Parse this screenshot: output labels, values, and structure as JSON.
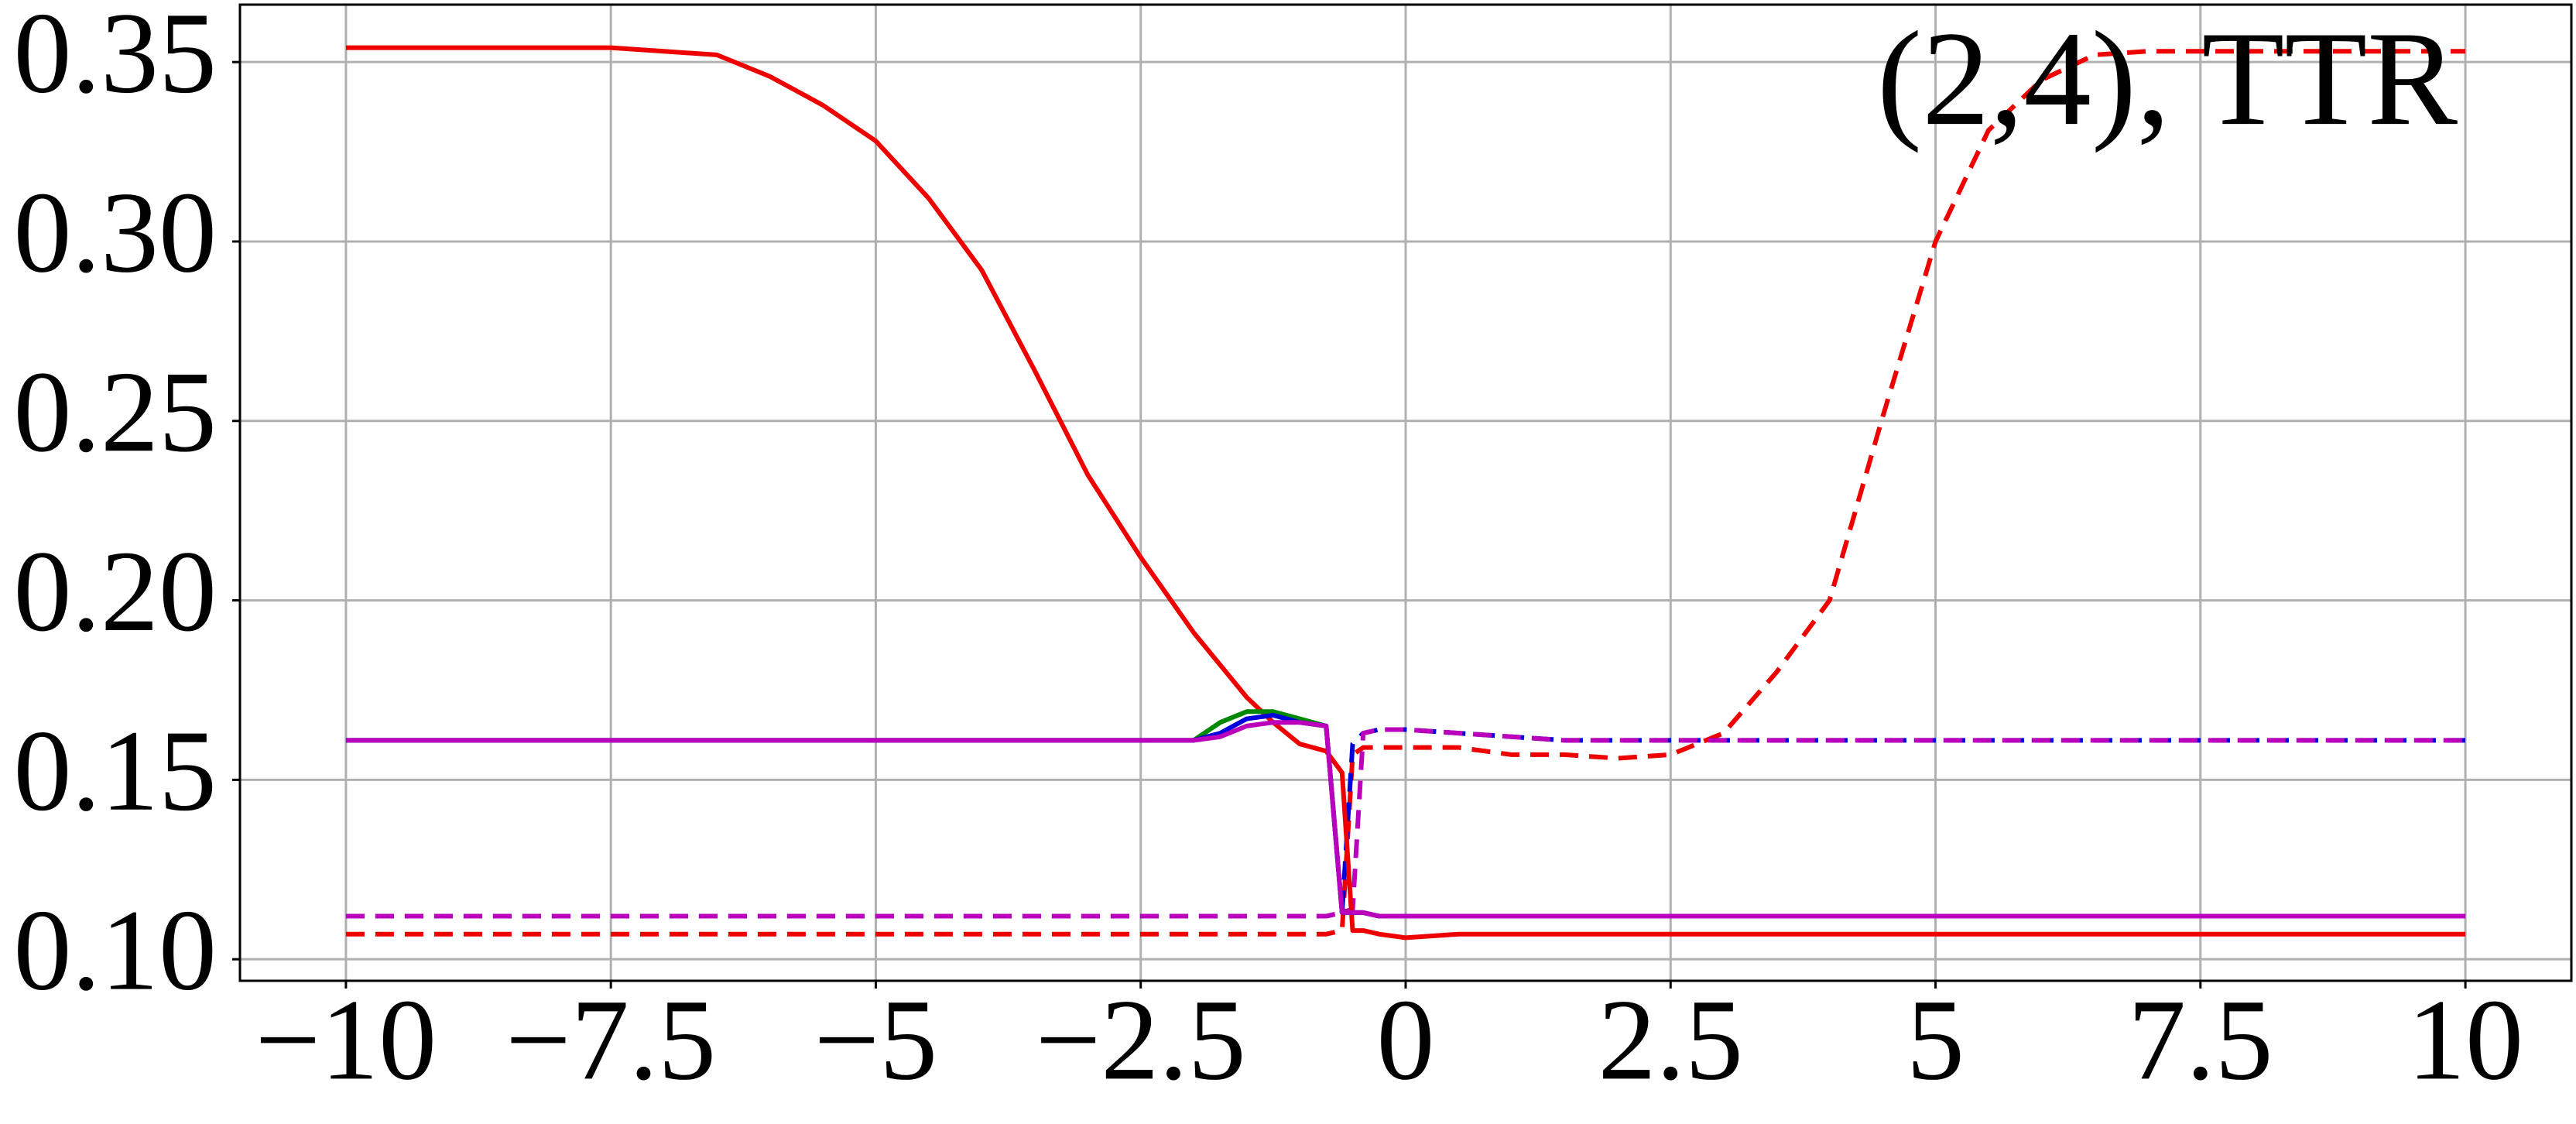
{
  "chart_data": {
    "type": "line",
    "annotation": "(2,4), TTR",
    "x": [
      -10,
      -9,
      -8,
      -7.5,
      -7,
      -6.5,
      -6,
      -5.5,
      -5,
      -4.5,
      -4,
      -3.5,
      -3,
      -2.5,
      -2,
      -1.75,
      -1.5,
      -1.25,
      -1,
      -0.75,
      -0.6,
      -0.5,
      -0.4,
      -0.25,
      0,
      0.5,
      1,
      1.5,
      2,
      2.5,
      3,
      3.5,
      4,
      4.5,
      5,
      5.5,
      6,
      6.5,
      7,
      8,
      9,
      10
    ],
    "series": [
      {
        "color": "#ee0000",
        "linestyle": "dashed",
        "values": [
          0.107,
          0.107,
          0.107,
          0.107,
          0.107,
          0.107,
          0.107,
          0.107,
          0.107,
          0.107,
          0.107,
          0.107,
          0.107,
          0.107,
          0.107,
          0.107,
          0.107,
          0.107,
          0.107,
          0.107,
          0.108,
          0.157,
          0.159,
          0.159,
          0.159,
          0.159,
          0.157,
          0.157,
          0.156,
          0.157,
          0.163,
          0.18,
          0.2,
          0.251,
          0.3,
          0.331,
          0.345,
          0.352,
          0.353,
          0.353,
          0.353,
          0.353
        ]
      },
      {
        "color": "#0000dd",
        "linestyle": "dashed",
        "values": [
          0.112,
          0.112,
          0.112,
          0.112,
          0.112,
          0.112,
          0.112,
          0.112,
          0.112,
          0.112,
          0.112,
          0.112,
          0.112,
          0.112,
          0.112,
          0.112,
          0.112,
          0.112,
          0.112,
          0.112,
          0.113,
          0.16,
          0.163,
          0.164,
          0.164,
          0.163,
          0.162,
          0.161,
          0.161,
          0.161,
          0.161,
          0.161,
          0.161,
          0.161,
          0.161,
          0.161,
          0.161,
          0.161,
          0.161,
          0.161,
          0.161,
          0.161
        ]
      },
      {
        "color": "#bb00bb",
        "linestyle": "dashed",
        "values": [
          0.112,
          0.112,
          0.112,
          0.112,
          0.112,
          0.112,
          0.112,
          0.112,
          0.112,
          0.112,
          0.112,
          0.112,
          0.112,
          0.112,
          0.112,
          0.112,
          0.112,
          0.112,
          0.112,
          0.112,
          0.113,
          0.114,
          0.163,
          0.164,
          0.164,
          0.163,
          0.162,
          0.161,
          0.161,
          0.161,
          0.161,
          0.161,
          0.161,
          0.161,
          0.161,
          0.161,
          0.161,
          0.161,
          0.161,
          0.161,
          0.161,
          0.161
        ]
      },
      {
        "color": "#ee0000",
        "linestyle": "solid",
        "values": [
          0.354,
          0.354,
          0.354,
          0.354,
          0.353,
          0.352,
          0.346,
          0.338,
          0.328,
          0.312,
          0.292,
          0.264,
          0.235,
          0.212,
          0.191,
          0.182,
          0.173,
          0.166,
          0.16,
          0.158,
          0.152,
          0.108,
          0.108,
          0.107,
          0.106,
          0.107,
          0.107,
          0.107,
          0.107,
          0.107,
          0.107,
          0.107,
          0.107,
          0.107,
          0.107,
          0.107,
          0.107,
          0.107,
          0.107,
          0.107,
          0.107,
          0.107
        ]
      },
      {
        "color": "#008800",
        "linestyle": "solid",
        "values": [
          0.161,
          0.161,
          0.161,
          0.161,
          0.161,
          0.161,
          0.161,
          0.161,
          0.161,
          0.161,
          0.161,
          0.161,
          0.161,
          0.161,
          0.161,
          0.166,
          0.169,
          0.169,
          0.167,
          0.165,
          0.113,
          0.113,
          0.113,
          0.112,
          0.112,
          0.112,
          0.112,
          0.112,
          0.112,
          0.112,
          0.112,
          0.112,
          0.112,
          0.112,
          0.112,
          0.112,
          0.112,
          0.112,
          0.112,
          0.112,
          0.112,
          0.112
        ]
      },
      {
        "color": "#0000dd",
        "linestyle": "solid",
        "values": [
          0.161,
          0.161,
          0.161,
          0.161,
          0.161,
          0.161,
          0.161,
          0.161,
          0.161,
          0.161,
          0.161,
          0.161,
          0.161,
          0.161,
          0.161,
          0.163,
          0.167,
          0.168,
          0.166,
          0.165,
          0.113,
          0.113,
          0.113,
          0.112,
          0.112,
          0.112,
          0.112,
          0.112,
          0.112,
          0.112,
          0.112,
          0.112,
          0.112,
          0.112,
          0.112,
          0.112,
          0.112,
          0.112,
          0.112,
          0.112,
          0.112,
          0.112
        ]
      },
      {
        "color": "#bb00bb",
        "linestyle": "solid",
        "values": [
          0.161,
          0.161,
          0.161,
          0.161,
          0.161,
          0.161,
          0.161,
          0.161,
          0.161,
          0.161,
          0.161,
          0.161,
          0.161,
          0.161,
          0.161,
          0.162,
          0.165,
          0.166,
          0.166,
          0.165,
          0.113,
          0.113,
          0.113,
          0.112,
          0.112,
          0.112,
          0.112,
          0.112,
          0.112,
          0.112,
          0.112,
          0.112,
          0.112,
          0.112,
          0.112,
          0.112,
          0.112,
          0.112,
          0.112,
          0.112,
          0.112,
          0.112
        ]
      }
    ],
    "xlim": [
      -11,
      11
    ],
    "xticks": [
      {
        "value": -10,
        "label": "−10"
      },
      {
        "value": -7.5,
        "label": "−7.5"
      },
      {
        "value": -5,
        "label": "−5"
      },
      {
        "value": -2.5,
        "label": "−2.5"
      },
      0,
      2.5,
      5,
      7.5,
      10
    ],
    "ylim": [
      0.094,
      0.366
    ],
    "yticks": [
      {
        "value": 0.1,
        "label": "0.10"
      },
      0.15,
      {
        "value": 0.2,
        "label": "0.20"
      },
      0.25,
      {
        "value": 0.3,
        "label": "0.30"
      },
      0.35
    ],
    "grid": true
  }
}
